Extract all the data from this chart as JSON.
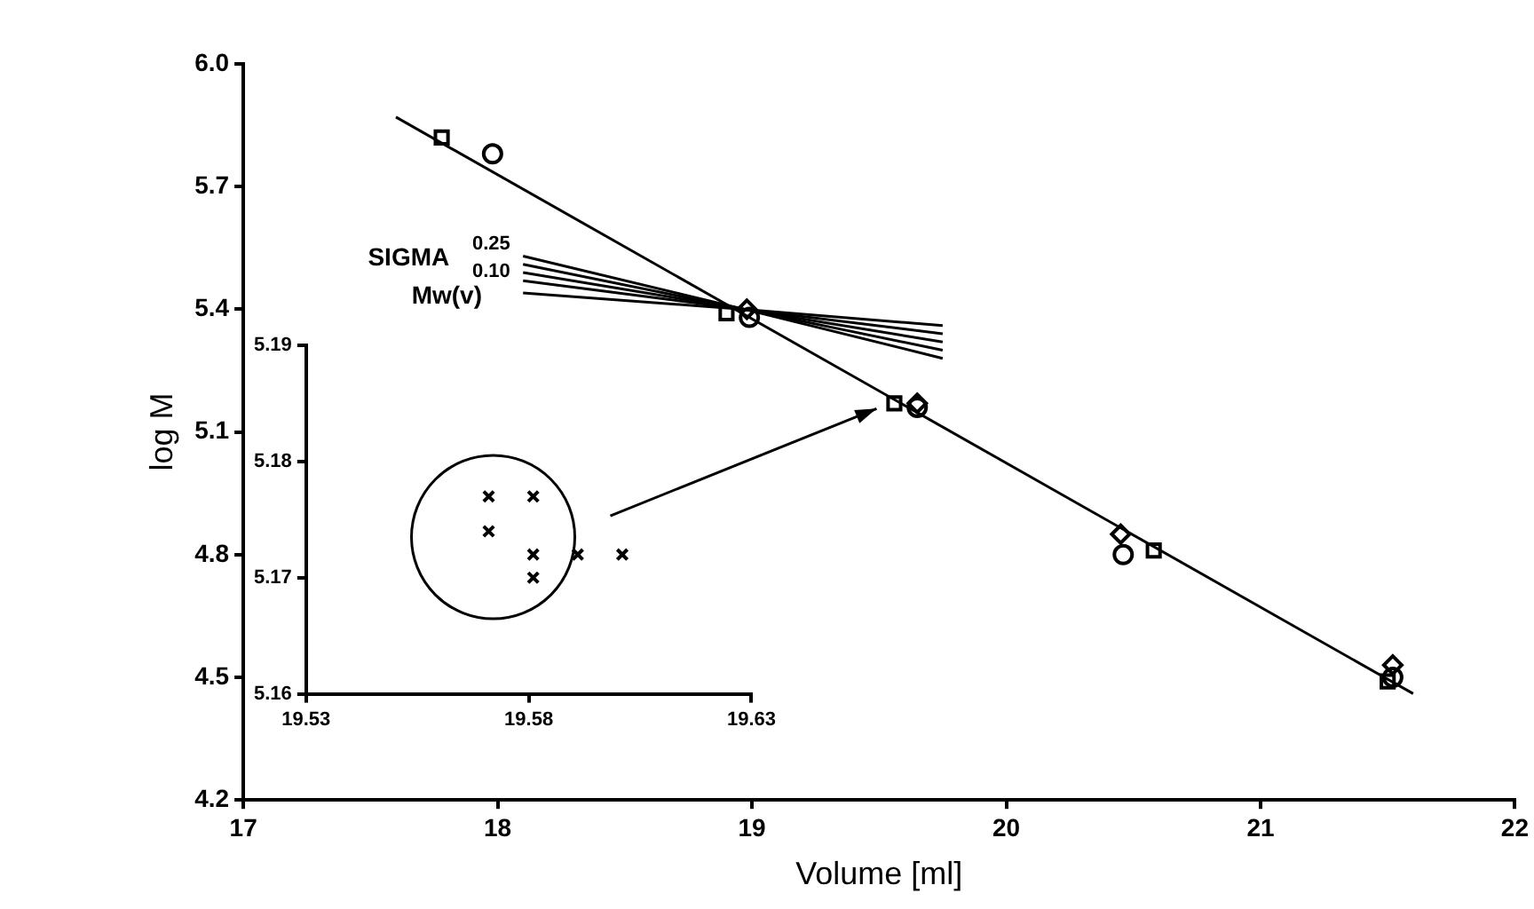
{
  "chart_data": [
    {
      "type": "scatter",
      "xlabel": "Volume [ml]",
      "ylabel": "log M",
      "xlim": [
        17,
        22
      ],
      "ylim": [
        4.2,
        6.0
      ],
      "xticks": [
        17,
        18,
        19,
        20,
        21,
        22
      ],
      "yticks": [
        4.2,
        4.5,
        4.8,
        5.1,
        5.4,
        5.7,
        {
          "value": 6.0,
          "label": "6.0"
        }
      ],
      "grid": false,
      "legend": false,
      "series": [
        {
          "type": "scatter",
          "marker": "square",
          "color": "#000000",
          "x": [
            17.78,
            18.9,
            19.56,
            20.58,
            21.5
          ],
          "values": [
            5.82,
            5.39,
            5.17,
            4.81,
            4.49
          ]
        },
        {
          "type": "scatter",
          "marker": "diamond",
          "color": "#000000",
          "x": [
            18.98,
            19.65,
            20.45,
            21.52
          ],
          "values": [
            5.4,
            5.17,
            4.85,
            4.53
          ]
        },
        {
          "type": "scatter",
          "marker": "circle",
          "color": "#000000",
          "x": [
            17.98,
            18.99,
            19.65,
            20.46,
            21.52
          ],
          "values": [
            5.78,
            5.38,
            5.16,
            4.8,
            4.5
          ]
        },
        {
          "type": "line",
          "marker": "none",
          "color": "#000000",
          "x": [
            17.6,
            21.6
          ],
          "values": [
            5.87,
            4.46
          ]
        },
        {
          "type": "line",
          "marker": "none",
          "color": "#000000",
          "x": [
            18.1,
            18.97,
            19.75
          ],
          "values": [
            5.53,
            5.4,
            5.28
          ]
        },
        {
          "type": "line",
          "marker": "none",
          "color": "#000000",
          "x": [
            18.1,
            18.97,
            19.75
          ],
          "values": [
            5.51,
            5.4,
            5.3
          ]
        },
        {
          "type": "line",
          "marker": "none",
          "color": "#000000",
          "x": [
            18.1,
            18.97,
            19.75
          ],
          "values": [
            5.49,
            5.4,
            5.32
          ]
        },
        {
          "type": "line",
          "marker": "none",
          "color": "#000000",
          "x": [
            18.1,
            18.97,
            19.75
          ],
          "values": [
            5.47,
            5.4,
            5.34
          ]
        },
        {
          "type": "line",
          "marker": "none",
          "color": "#000000",
          "x": [
            18.1,
            18.97,
            19.75
          ],
          "values": [
            5.44,
            5.4,
            5.36
          ]
        }
      ],
      "annotations": [
        "SIGMA",
        "0.25",
        "0.10",
        "Mw(v)"
      ]
    },
    {
      "type": "scatter",
      "xlim": [
        19.53,
        19.63
      ],
      "ylim": [
        5.16,
        5.19
      ],
      "xticks": [
        19.53,
        19.58,
        19.63
      ],
      "yticks": [
        5.16,
        5.17,
        5.18,
        5.19
      ],
      "grid": false,
      "legend": false,
      "marker": "cross",
      "series": [
        {
          "color": "#000000",
          "x": [
            19.571,
            19.571,
            19.581,
            19.581,
            19.591,
            19.601,
            19.581
          ],
          "values": [
            5.177,
            5.174,
            5.177,
            5.172,
            5.172,
            5.172,
            5.17
          ]
        }
      ]
    }
  ]
}
